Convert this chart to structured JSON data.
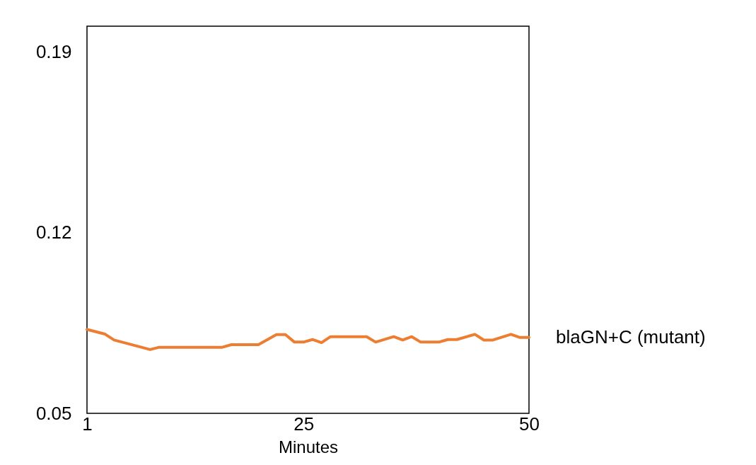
{
  "chart_data": {
    "type": "line",
    "xlabel": "Minutes",
    "xlim": [
      1,
      50
    ],
    "xticks": [
      1,
      25,
      50
    ],
    "ylim": [
      0.05,
      0.2
    ],
    "yticks": [
      0.05,
      0.12,
      0.19
    ],
    "grid": false,
    "legend": false,
    "marker": "none",
    "line_style": "solid",
    "series": [
      {
        "name": "blaGN+C (mutant)",
        "color": "#ed7d31",
        "x": [
          1,
          3,
          4,
          8,
          9,
          16,
          17,
          20,
          22,
          23,
          24,
          25,
          26,
          27,
          28,
          32,
          33,
          35,
          36,
          37,
          38,
          40,
          41,
          42,
          44,
          45,
          46,
          48,
          49,
          50
        ],
        "values": [
          0.0825,
          0.0807,
          0.0784,
          0.0747,
          0.0756,
          0.0756,
          0.0766,
          0.0766,
          0.0805,
          0.0805,
          0.0776,
          0.0776,
          0.0786,
          0.0774,
          0.0797,
          0.0797,
          0.0776,
          0.0797,
          0.0784,
          0.0797,
          0.0776,
          0.0776,
          0.0786,
          0.0786,
          0.0806,
          0.0784,
          0.0784,
          0.0806,
          0.0794,
          0.0794
        ]
      }
    ]
  }
}
